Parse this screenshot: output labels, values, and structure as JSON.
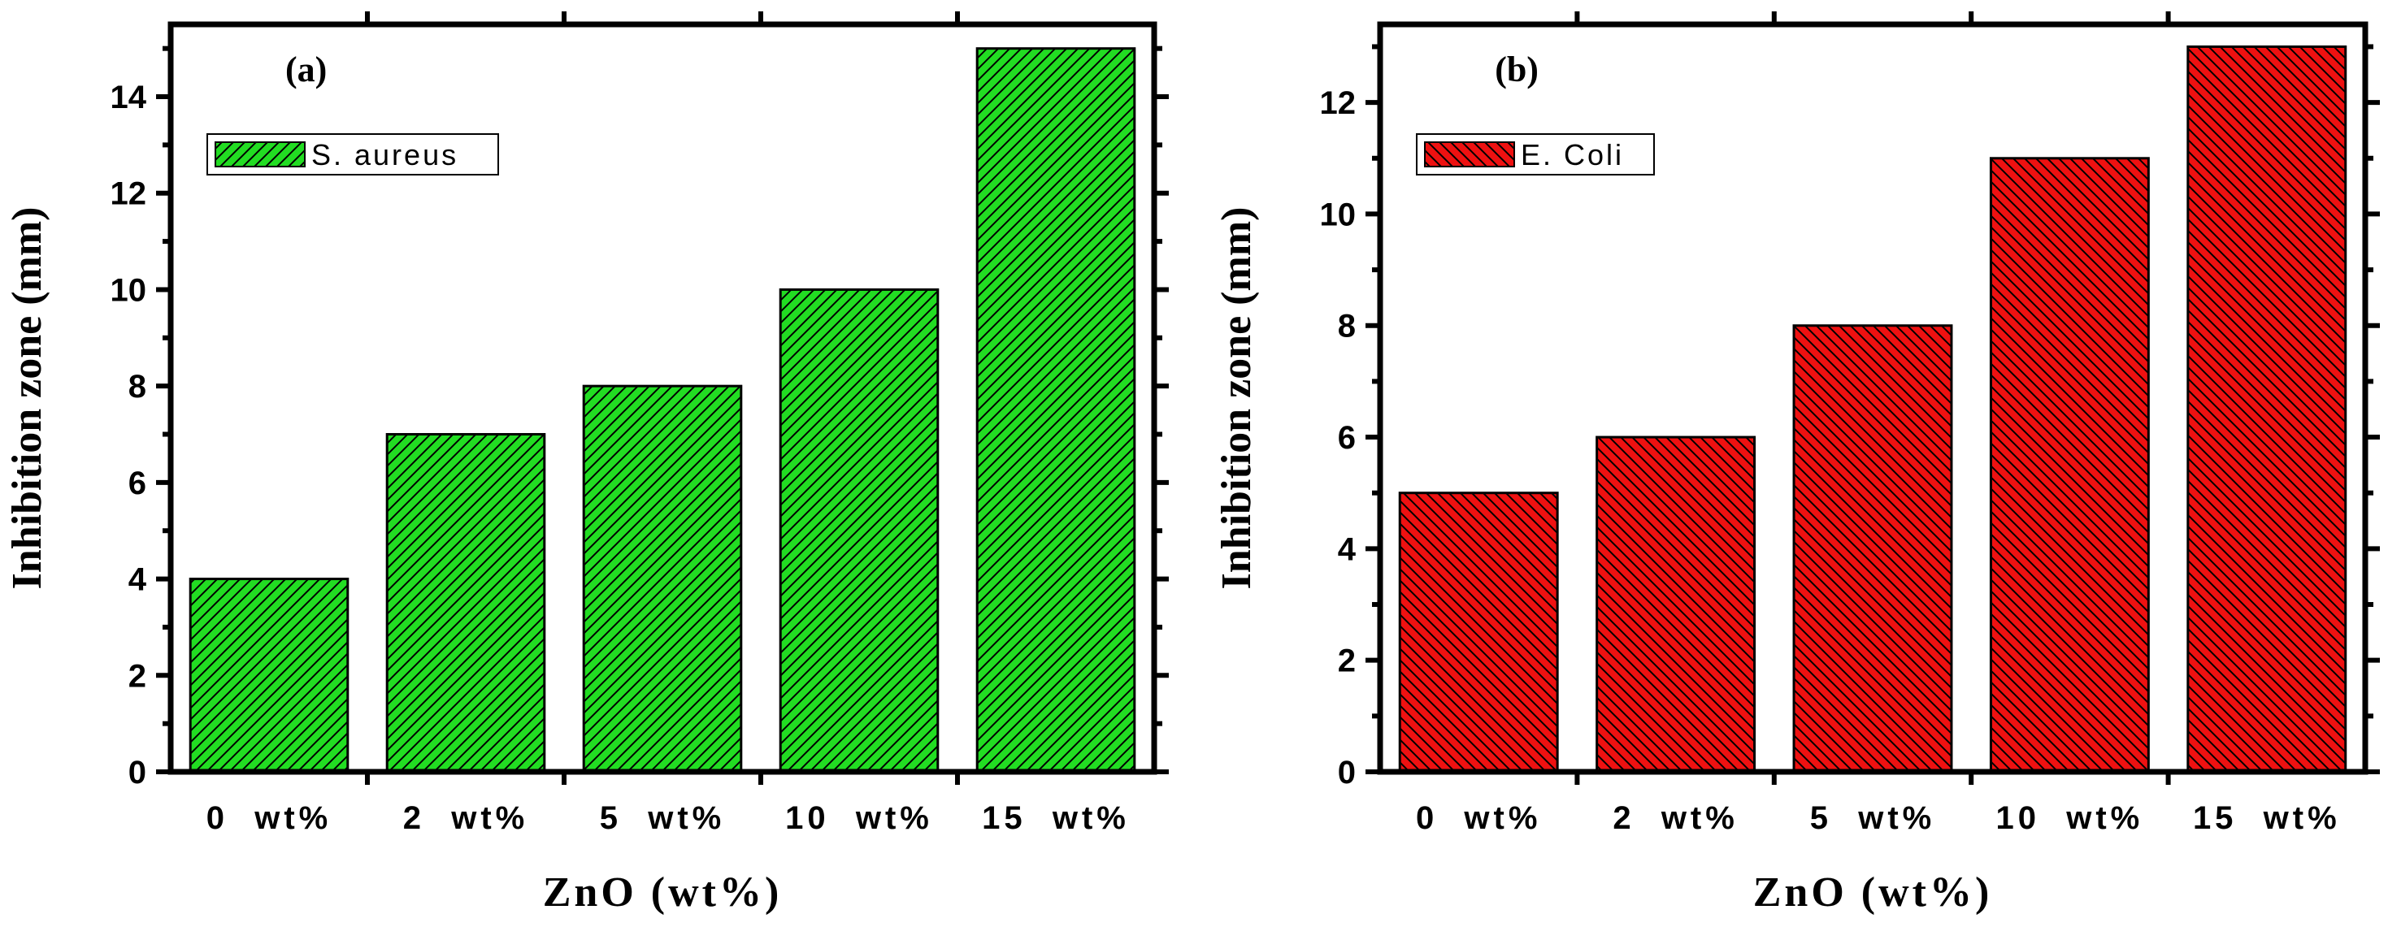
{
  "chart_data": [
    {
      "type": "bar",
      "panel_label": "(a)",
      "categories": [
        "0  wt%",
        "2  wt%",
        "5  wt%",
        "10  wt%",
        "15  wt%"
      ],
      "series": [
        {
          "name": "S. aureus",
          "values": [
            4,
            7,
            8,
            10,
            15
          ]
        }
      ],
      "xlabel": "ZnO (wt%)",
      "ylabel": "Inhibition zone (mm)",
      "ylim": [
        0,
        15.5
      ],
      "yticks": [
        0,
        2,
        4,
        6,
        8,
        10,
        12,
        14
      ],
      "legend_position": "top-left",
      "color": "#22dd22",
      "hatch": "forward-diagonal"
    },
    {
      "type": "bar",
      "panel_label": "(b)",
      "categories": [
        "0  wt%",
        "2  wt%",
        "5  wt%",
        "10  wt%",
        "15  wt%"
      ],
      "series": [
        {
          "name": "E. Coli",
          "values": [
            5,
            6,
            8,
            11,
            13
          ]
        }
      ],
      "xlabel": "ZnO (wt%)",
      "ylabel": "Inhibition zone (mm)",
      "ylim": [
        0,
        13.4
      ],
      "yticks": [
        0,
        2,
        4,
        6,
        8,
        10,
        12
      ],
      "legend_position": "top-left",
      "color": "#ee1111",
      "hatch": "back-diagonal"
    }
  ]
}
